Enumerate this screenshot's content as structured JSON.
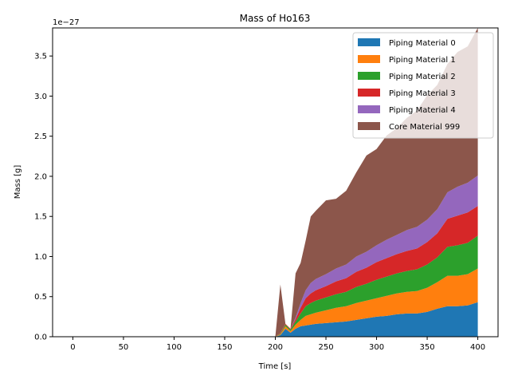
{
  "chart_data": {
    "type": "area",
    "title": "Mass of Ho163",
    "xlabel": "Time [s]",
    "ylabel": "Mass [g]",
    "offset_label": "1e−27",
    "xlim": [
      -20,
      420
    ],
    "ylim": [
      0,
      3.85
    ],
    "xticks": [
      0,
      50,
      100,
      150,
      200,
      250,
      300,
      350,
      400
    ],
    "yticks": [
      0.0,
      0.5,
      1.0,
      1.5,
      2.0,
      2.5,
      3.0,
      3.5
    ],
    "ytick_labels": [
      "0.0",
      "0.5",
      "1.0",
      "1.5",
      "2.0",
      "2.5",
      "3.0",
      "3.5"
    ],
    "legend_position": "top-right",
    "x": [
      0,
      195,
      200,
      205,
      210,
      215,
      220,
      225,
      230,
      235,
      240,
      250,
      260,
      270,
      280,
      290,
      300,
      310,
      320,
      330,
      340,
      350,
      360,
      370,
      380,
      390,
      400
    ],
    "series": [
      {
        "name": "Piping Material 0",
        "color": "#1f77b4",
        "values": [
          0,
          0,
          0,
          0.02,
          0.1,
          0.05,
          0.1,
          0.13,
          0.14,
          0.15,
          0.16,
          0.17,
          0.18,
          0.19,
          0.21,
          0.23,
          0.25,
          0.26,
          0.28,
          0.29,
          0.29,
          0.31,
          0.35,
          0.38,
          0.38,
          0.39,
          0.43
        ]
      },
      {
        "name": "Piping Material 1",
        "color": "#ff7f0e",
        "values": [
          0,
          0,
          0,
          0.01,
          0.03,
          0.02,
          0.05,
          0.08,
          0.12,
          0.13,
          0.14,
          0.16,
          0.18,
          0.19,
          0.21,
          0.22,
          0.23,
          0.25,
          0.26,
          0.27,
          0.28,
          0.3,
          0.33,
          0.38,
          0.38,
          0.39,
          0.42
        ]
      },
      {
        "name": "Piping Material 2",
        "color": "#2ca02c",
        "values": [
          0,
          0,
          0,
          0.01,
          0.02,
          0.02,
          0.04,
          0.08,
          0.12,
          0.14,
          0.15,
          0.16,
          0.17,
          0.18,
          0.2,
          0.21,
          0.23,
          0.24,
          0.25,
          0.26,
          0.27,
          0.29,
          0.31,
          0.36,
          0.38,
          0.39,
          0.41
        ]
      },
      {
        "name": "Piping Material 3",
        "color": "#d62728",
        "values": [
          0,
          0,
          0,
          0.01,
          0.01,
          0.01,
          0.03,
          0.07,
          0.1,
          0.12,
          0.13,
          0.14,
          0.16,
          0.17,
          0.19,
          0.2,
          0.22,
          0.23,
          0.24,
          0.25,
          0.26,
          0.28,
          0.3,
          0.35,
          0.37,
          0.38,
          0.37
        ]
      },
      {
        "name": "Piping Material 4",
        "color": "#9467bd",
        "values": [
          0,
          0,
          0,
          0.0,
          0.0,
          0.0,
          0.02,
          0.06,
          0.1,
          0.13,
          0.14,
          0.15,
          0.16,
          0.17,
          0.19,
          0.2,
          0.21,
          0.23,
          0.24,
          0.26,
          0.27,
          0.28,
          0.3,
          0.33,
          0.36,
          0.37,
          0.38
        ]
      },
      {
        "name": "Core Material 999",
        "color": "#8c564b",
        "values": [
          0,
          0,
          0,
          0.6,
          0.0,
          0.0,
          0.55,
          0.5,
          0.62,
          0.83,
          0.85,
          0.92,
          0.87,
          0.92,
          1.05,
          1.2,
          1.2,
          1.3,
          1.33,
          1.4,
          1.45,
          1.55,
          1.55,
          1.6,
          1.68,
          1.7,
          1.84
        ]
      }
    ]
  }
}
